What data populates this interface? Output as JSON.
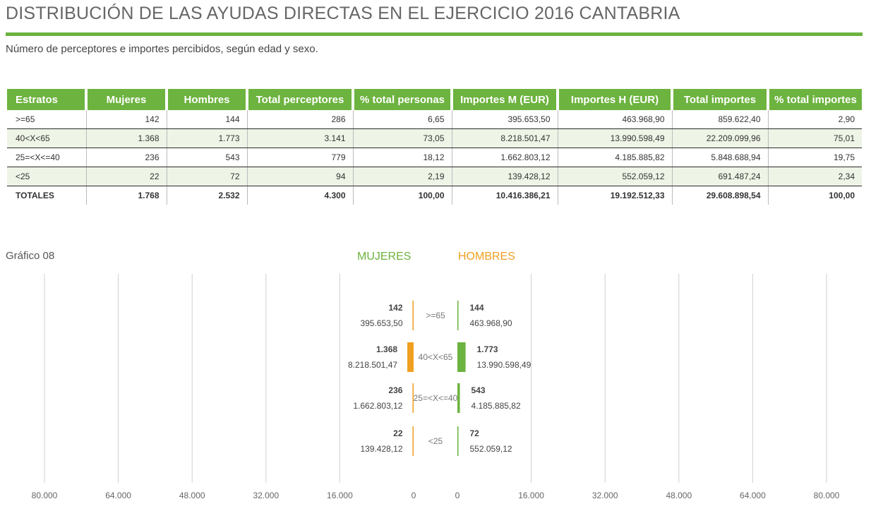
{
  "header": {
    "title": "DISTRIBUCIÓN DE LAS AYUDAS DIRECTAS EN EL EJERCICIO 2016 CANTABRIA",
    "subtitle": "Número de perceptores e importes percibidos, según edad y sexo."
  },
  "colors": {
    "accent_green": "#6db33f",
    "accent_orange": "#f0a020",
    "row_alt": "#eef4e6"
  },
  "table": {
    "columns": [
      "Estratos",
      "Mujeres",
      "Hombres",
      "Total perceptores",
      "% total personas",
      "Importes M (EUR)",
      "Importes H (EUR)",
      "Total importes",
      "% total importes"
    ],
    "rows": [
      [
        ">=65",
        "142",
        "144",
        "286",
        "6,65",
        "395.653,50",
        "463.968,90",
        "859.622,40",
        "2,90"
      ],
      [
        "40<X<65",
        "1.368",
        "1.773",
        "3.141",
        "73,05",
        "8.218.501,47",
        "13.990.598,49",
        "22.209.099,96",
        "75,01"
      ],
      [
        "25=<X<=40",
        "236",
        "543",
        "779",
        "18,12",
        "1.662.803,12",
        "4.185.885,82",
        "5.848.688,94",
        "19,75"
      ],
      [
        "<25",
        "22",
        "72",
        "94",
        "2,19",
        "139.428,12",
        "552.059,12",
        "691.487,24",
        "2,34"
      ],
      [
        "TOTALES",
        "1.768",
        "2.532",
        "4.300",
        "100,00",
        "10.416.386,21",
        "19.192.512,33",
        "29.608.898,54",
        "100,00"
      ]
    ]
  },
  "chart_label": "Gráfico 08",
  "chart_data": {
    "type": "bar",
    "orientation": "horizontal-pyramid",
    "legend": [
      "MUJERES",
      "HOMBRES"
    ],
    "categories": [
      ">=65",
      "40<X<65",
      "25=<X<=40",
      "<25"
    ],
    "series": [
      {
        "name": "MUJERES",
        "values": [
          142,
          1368,
          236,
          22
        ],
        "value_labels": [
          "142",
          "1.368",
          "236",
          "22"
        ],
        "amount_labels": [
          "395.653,50",
          "8.218.501,47",
          "1.662.803,12",
          "139.428,12"
        ],
        "color": "#f0a020"
      },
      {
        "name": "HOMBRES",
        "values": [
          144,
          1773,
          543,
          72
        ],
        "value_labels": [
          "144",
          "1.773",
          "543",
          "72"
        ],
        "amount_labels": [
          "463.968,90",
          "13.990.598,49",
          "4.185.885,82",
          "552.059,12"
        ],
        "color": "#6db33f"
      }
    ],
    "xlim": [
      0,
      80000
    ],
    "tick_values": [
      0,
      16000,
      32000,
      48000,
      64000,
      80000
    ],
    "left_ticks": [
      "80.000",
      "64.000",
      "48.000",
      "32.000",
      "16.000",
      "0"
    ],
    "right_ticks": [
      "0",
      "16.000",
      "32.000",
      "48.000",
      "64.000",
      "80.000"
    ],
    "grid": true
  }
}
